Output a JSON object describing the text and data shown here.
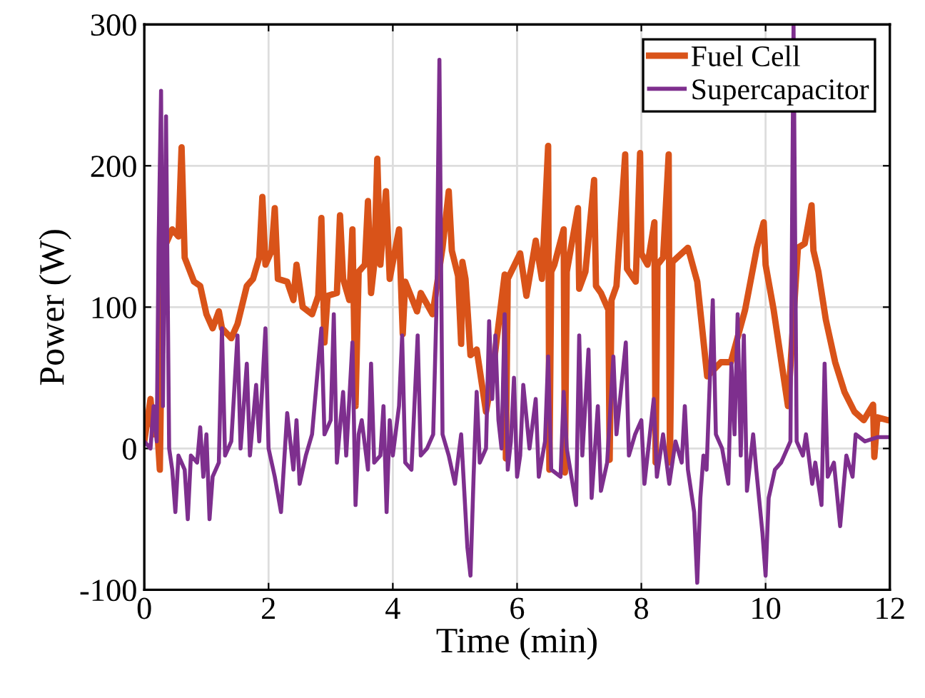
{
  "chart_data": {
    "type": "line",
    "xlabel": "Time (min)",
    "ylabel": "Power (W)",
    "xlim": [
      0,
      12
    ],
    "ylim": [
      -100,
      300
    ],
    "xticks": [
      0,
      2,
      4,
      6,
      8,
      10,
      12
    ],
    "yticks": [
      -100,
      0,
      100,
      200,
      300
    ],
    "grid": true,
    "legend": "top right",
    "line_style": "solid",
    "marker": "none",
    "series": [
      {
        "name": "Fuel Cell",
        "color": "#d95319",
        "x": [
          0,
          0.1,
          0.15,
          0.2,
          0.25,
          0.3,
          0.45,
          0.55,
          0.6,
          0.65,
          0.8,
          0.9,
          1.0,
          1.1,
          1.2,
          1.25,
          1.4,
          1.5,
          1.65,
          1.75,
          1.85,
          1.9,
          1.95,
          2.05,
          2.1,
          2.15,
          2.3,
          2.4,
          2.45,
          2.55,
          2.7,
          2.8,
          2.85,
          2.9,
          2.95,
          3.1,
          3.15,
          3.2,
          3.3,
          3.35,
          3.4,
          3.45,
          3.55,
          3.6,
          3.65,
          3.7,
          3.75,
          3.8,
          3.89,
          3.95,
          4.1,
          4.16,
          4.2,
          4.39,
          4.45,
          4.64,
          4.8,
          4.9,
          4.95,
          5.05,
          5.1,
          5.12,
          5.17,
          5.25,
          5.35,
          5.5,
          5.6,
          5.8,
          5.82,
          5.85,
          6.05,
          6.15,
          6.3,
          6.4,
          6.5,
          6.52,
          6.55,
          6.6,
          6.75,
          6.77,
          6.8,
          6.98,
          7.0,
          7.1,
          7.24,
          7.27,
          7.35,
          7.47,
          7.49,
          7.52,
          7.6,
          7.74,
          7.77,
          7.91,
          7.98,
          8.0,
          8.1,
          8.21,
          8.23,
          8.26,
          8.35,
          8.44,
          8.46,
          8.5,
          8.75,
          8.9,
          9.06,
          9.28,
          9.44,
          9.67,
          9.86,
          9.97,
          10.0,
          10.13,
          10.36,
          10.52,
          10.63,
          10.74,
          10.77,
          10.85,
          10.97,
          11.12,
          11.27,
          11.43,
          11.58,
          11.73,
          11.75,
          11.8,
          11.97,
          12.0
        ],
        "values": [
          5,
          35,
          10,
          20,
          -15,
          140,
          155,
          150,
          213,
          135,
          118,
          115,
          95,
          85,
          97,
          85,
          78,
          88,
          115,
          120,
          135,
          178,
          130,
          140,
          170,
          120,
          118,
          105,
          130,
          100,
          95,
          108,
          163,
          75,
          108,
          110,
          165,
          120,
          105,
          155,
          30,
          125,
          130,
          175,
          110,
          130,
          205,
          130,
          182,
          120,
          155,
          81,
          118,
          97,
          110,
          95,
          142,
          182,
          140,
          122,
          74,
          132,
          120,
          66,
          70,
          26,
          51,
          123,
          -7,
          120,
          138,
          108,
          147,
          120,
          214,
          -15,
          125,
          130,
          155,
          -17,
          125,
          170,
          113,
          125,
          190,
          115,
          110,
          98,
          -8,
          105,
          115,
          208,
          127,
          118,
          209,
          138,
          130,
          160,
          -10,
          130,
          135,
          208,
          -10,
          132,
          142,
          118,
          51,
          61,
          61,
          98,
          142,
          160,
          130,
          98,
          30,
          142,
          145,
          172,
          140,
          125,
          91,
          61,
          40,
          26,
          20,
          31,
          -6,
          22,
          20,
          20
        ]
      },
      {
        "name": "Supercapacitor",
        "color": "#7e2f8e",
        "x": [
          0,
          0.1,
          0.15,
          0.2,
          0.23,
          0.27,
          0.3,
          0.35,
          0.4,
          0.45,
          0.5,
          0.55,
          0.65,
          0.7,
          0.75,
          0.85,
          0.9,
          0.95,
          1.0,
          1.05,
          1.1,
          1.2,
          1.25,
          1.3,
          1.4,
          1.5,
          1.55,
          1.65,
          1.7,
          1.8,
          1.85,
          1.95,
          2.0,
          2.1,
          2.2,
          2.3,
          2.4,
          2.45,
          2.5,
          2.6,
          2.7,
          2.85,
          2.9,
          3.0,
          3.05,
          3.1,
          3.2,
          3.25,
          3.35,
          3.4,
          3.45,
          3.5,
          3.6,
          3.65,
          3.7,
          3.8,
          3.85,
          3.9,
          3.95,
          4.0,
          4.1,
          4.15,
          4.2,
          4.3,
          4.4,
          4.45,
          4.55,
          4.65,
          4.7,
          4.75,
          4.8,
          4.9,
          5.0,
          5.1,
          5.15,
          5.2,
          5.25,
          5.3,
          5.35,
          5.4,
          5.5,
          5.55,
          5.6,
          5.65,
          5.7,
          5.75,
          5.8,
          5.85,
          5.9,
          5.95,
          6.0,
          6.05,
          6.1,
          6.2,
          6.3,
          6.35,
          6.45,
          6.5,
          6.55,
          6.7,
          6.75,
          6.8,
          6.95,
          7.0,
          7.05,
          7.15,
          7.2,
          7.3,
          7.35,
          7.45,
          7.55,
          7.6,
          7.75,
          7.8,
          7.9,
          8.0,
          8.05,
          8.2,
          8.25,
          8.35,
          8.45,
          8.55,
          8.65,
          8.7,
          8.75,
          8.85,
          8.9,
          8.95,
          9.0,
          9.05,
          9.15,
          9.2,
          9.3,
          9.4,
          9.45,
          9.5,
          9.55,
          9.6,
          9.65,
          9.7,
          9.75,
          9.8,
          9.85,
          9.95,
          10.0,
          10.05,
          10.15,
          10.25,
          10.4,
          10.45,
          10.5,
          10.6,
          10.65,
          10.75,
          10.8,
          10.9,
          10.95,
          11.0,
          11.1,
          11.2,
          11.3,
          11.4,
          11.45,
          11.6,
          11.8,
          12.0
        ],
        "values": [
          5,
          0,
          30,
          5,
          145,
          253,
          30,
          235,
          0,
          -15,
          -45,
          -5,
          -15,
          -50,
          -5,
          -10,
          15,
          -20,
          10,
          -50,
          -20,
          -10,
          85,
          -5,
          5,
          80,
          0,
          60,
          -5,
          45,
          5,
          85,
          0,
          -20,
          -45,
          25,
          -15,
          20,
          -25,
          -5,
          10,
          85,
          10,
          20,
          95,
          -10,
          40,
          -5,
          75,
          -40,
          10,
          20,
          -15,
          60,
          -10,
          -5,
          30,
          -45,
          20,
          -5,
          30,
          80,
          -10,
          -15,
          80,
          -5,
          0,
          10,
          95,
          275,
          10,
          -5,
          -25,
          10,
          -30,
          -70,
          -90,
          -20,
          40,
          -10,
          0,
          90,
          35,
          80,
          20,
          0,
          95,
          -15,
          5,
          50,
          -20,
          -5,
          45,
          0,
          35,
          -20,
          5,
          65,
          -15,
          -20,
          40,
          0,
          -40,
          80,
          -5,
          70,
          -35,
          30,
          -30,
          -10,
          65,
          10,
          75,
          -5,
          10,
          20,
          -25,
          35,
          -20,
          10,
          -25,
          5,
          -10,
          30,
          -15,
          -45,
          -95,
          -35,
          -5,
          -15,
          105,
          10,
          0,
          -25,
          60,
          10,
          95,
          -5,
          80,
          -30,
          -10,
          10,
          -15,
          -60,
          -90,
          -35,
          -15,
          -10,
          5,
          300,
          5,
          -5,
          10,
          -25,
          -10,
          -40,
          60,
          -20,
          -10,
          -55,
          -5,
          -20,
          10,
          5,
          8,
          8
        ]
      }
    ]
  }
}
